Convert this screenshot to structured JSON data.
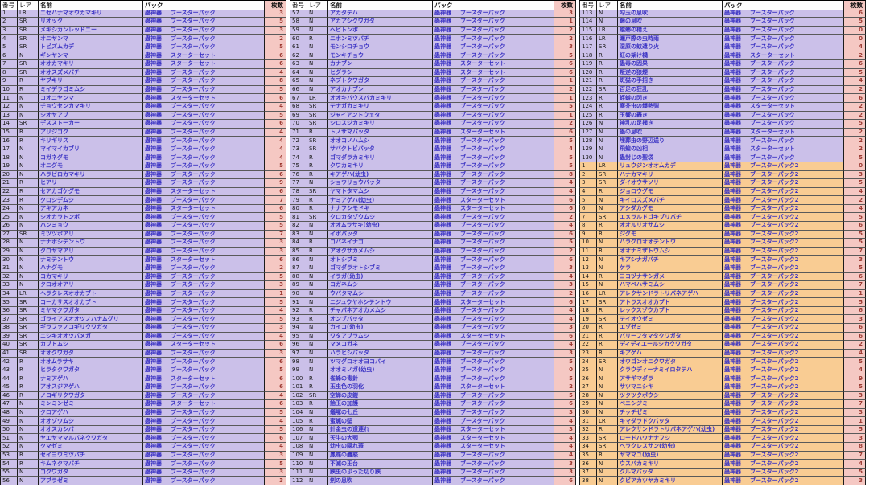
{
  "columns": [
    "番号",
    "レア",
    "名前",
    "パック",
    "枚数"
  ],
  "brand": "蟲神器",
  "packs": {
    "B": "ブースターパック",
    "S": "スターターセット",
    "B2": "ブースターパック2"
  },
  "colors": {
    "row_purple": "#cbc0e9",
    "row_orange": "#f9cc93",
    "count_col_pink": "#f5c8c3",
    "header_bg": "#fdfdfd",
    "name_text": "#3c34c4",
    "count_text": "#9c3a32"
  },
  "sections": [
    {
      "rows": [
        [
          1,
          "LR",
          "ニセハナマオウカマキリ",
          "B",
          3
        ],
        [
          2,
          "SR",
          "リオック",
          "B",
          5
        ],
        [
          3,
          "SR",
          "メキシカンレッドニー",
          "B",
          3
        ],
        [
          4,
          "SR",
          "オニヤンマ",
          "B",
          2
        ],
        [
          5,
          "SR",
          "トビズムカデ",
          "B",
          5
        ],
        [
          6,
          "N",
          "ギンヤンマ",
          "S",
          6
        ],
        [
          7,
          "SR",
          "オオカマキリ",
          "S",
          6
        ],
        [
          8,
          "SR",
          "オオスズメバチ",
          "B",
          4
        ],
        [
          9,
          "R",
          "ヤブキリ",
          "B",
          8
        ],
        [
          10,
          "R",
          "ミイデラゴミムシ",
          "B",
          5
        ],
        [
          11,
          "N",
          "コオニヤンマ",
          "S",
          6
        ],
        [
          12,
          "N",
          "チョウセンカマキリ",
          "B",
          4
        ],
        [
          13,
          "N",
          "シオヤアブ",
          "B",
          5
        ],
        [
          14,
          "SR",
          "デスストーカー",
          "B",
          6
        ],
        [
          15,
          "R",
          "アリジゴク",
          "B",
          4
        ],
        [
          16,
          "R",
          "キリギリス",
          "B",
          4
        ],
        [
          17,
          "N",
          "マイマイカブリ",
          "B",
          4
        ],
        [
          18,
          "N",
          "コガネグモ",
          "B",
          4
        ],
        [
          19,
          "N",
          "オニグモ",
          "B",
          5
        ],
        [
          20,
          "N",
          "ハラビロカマキリ",
          "B",
          6
        ],
        [
          21,
          "R",
          "ヒアリ",
          "B",
          9
        ],
        [
          22,
          "R",
          "セアカゴケグモ",
          "S",
          6
        ],
        [
          23,
          "R",
          "クロシデムシ",
          "B",
          7
        ],
        [
          24,
          "N",
          "アキアカネ",
          "S",
          6
        ],
        [
          25,
          "N",
          "シオカラトンボ",
          "B",
          5
        ],
        [
          26,
          "N",
          "ハンミョウ",
          "B",
          5
        ],
        [
          27,
          "SR",
          "ミツツボアリ",
          "B",
          7
        ],
        [
          28,
          "N",
          "ナナホシテントウ",
          "B",
          3
        ],
        [
          29,
          "N",
          "クロヤマアリ",
          "B",
          3
        ],
        [
          30,
          "N",
          "ナミテントウ",
          "S",
          6
        ],
        [
          31,
          "N",
          "ハナグモ",
          "B",
          2
        ],
        [
          32,
          "N",
          "コカマキリ",
          "B",
          5
        ],
        [
          33,
          "N",
          "クロオオアリ",
          "B",
          3
        ],
        [
          34,
          "LR",
          "ヘラクレスオオカブト",
          "B",
          1
        ],
        [
          35,
          "SR",
          "コーカサスオオカブト",
          "B",
          5
        ],
        [
          36,
          "SR",
          "ミヤマクワガタ",
          "B",
          4
        ],
        [
          37,
          "SR",
          "ゴライアスオオツノハナムグリ",
          "B",
          5
        ],
        [
          38,
          "SR",
          "ギラファノコギリクワガタ",
          "B",
          3
        ],
        [
          39,
          "SR",
          "ニシキオオツバメガ",
          "B",
          4
        ],
        [
          40,
          "SR",
          "カブトムシ",
          "S",
          6
        ],
        [
          41,
          "SR",
          "オオクワガタ",
          "B",
          3
        ],
        [
          42,
          "R",
          "オオムラサキ",
          "B",
          6
        ],
        [
          43,
          "R",
          "ヒラタクワガタ",
          "B",
          5
        ],
        [
          44,
          "R",
          "ナミアゲハ",
          "S",
          6
        ],
        [
          45,
          "R",
          "アオスジアゲハ",
          "B",
          6
        ],
        [
          46,
          "R",
          "ノコギリクワガタ",
          "B",
          4
        ],
        [
          47,
          "N",
          "ミンミンゼミ",
          "S",
          6
        ],
        [
          48,
          "N",
          "クロアゲハ",
          "B",
          5
        ],
        [
          49,
          "N",
          "オオゾウムシ",
          "B",
          4
        ],
        [
          50,
          "N",
          "オオスカシバ",
          "B",
          5
        ],
        [
          51,
          "N",
          "ヤエヤママルバネクワガタ",
          "B",
          6
        ],
        [
          52,
          "N",
          "クマゼミ",
          "B",
          4
        ],
        [
          53,
          "R",
          "セイヨウミツバチ",
          "B",
          3
        ],
        [
          54,
          "R",
          "キムネクマバチ",
          "B",
          5
        ],
        [
          55,
          "N",
          "コクワガタ",
          "B",
          3
        ],
        [
          56,
          "N",
          "アブラゼミ",
          "B",
          3
        ]
      ]
    },
    {
      "rows": [
        [
          57,
          "N",
          "アカタテハ",
          "B",
          3
        ],
        [
          58,
          "N",
          "アカアシクワガタ",
          "B",
          1
        ],
        [
          59,
          "N",
          "ヘビトンボ",
          "B",
          2
        ],
        [
          60,
          "R",
          "ニホンミツバチ",
          "B",
          2
        ],
        [
          61,
          "N",
          "モンシロチョウ",
          "B",
          3
        ],
        [
          62,
          "N",
          "モンキチョウ",
          "B",
          5
        ],
        [
          63,
          "N",
          "カナブン",
          "S",
          6
        ],
        [
          64,
          "N",
          "ヒグラシ",
          "S",
          6
        ],
        [
          65,
          "N",
          "ネブトクワガタ",
          "B",
          1
        ],
        [
          66,
          "N",
          "アオカナブン",
          "B",
          2
        ],
        [
          67,
          "LR",
          "オオキバウスバカミキリ",
          "B",
          1
        ],
        [
          68,
          "SR",
          "テナガカミキリ",
          "B",
          5
        ],
        [
          69,
          "SR",
          "ジャイアントウェタ",
          "B",
          1
        ],
        [
          70,
          "SR",
          "シロスジカミキリ",
          "B",
          2
        ],
        [
          71,
          "R",
          "トノサマバッタ",
          "S",
          6
        ],
        [
          72,
          "SR",
          "オオコノハムシ",
          "B",
          5
        ],
        [
          73,
          "SR",
          "サバクトビバッタ",
          "B",
          4
        ],
        [
          74,
          "R",
          "ゴマダラカミキリ",
          "B",
          5
        ],
        [
          75,
          "R",
          "クワカミキリ",
          "B",
          5
        ],
        [
          76,
          "R",
          "キアゲハ(幼虫)",
          "B",
          8
        ],
        [
          77,
          "N",
          "ショウリョウバッタ",
          "B",
          4
        ],
        [
          78,
          "SR",
          "ヤマトタマムシ",
          "B",
          4
        ],
        [
          79,
          "R",
          "ナミアゲハ(幼虫)",
          "S",
          6
        ],
        [
          80,
          "R",
          "ナナフシモドキ",
          "S",
          6
        ],
        [
          81,
          "SR",
          "クロカタゾウムシ",
          "B",
          2
        ],
        [
          82,
          "N",
          "オオムラサキ(幼虫)",
          "B",
          4
        ],
        [
          83,
          "N",
          "イボバッタ",
          "B",
          6
        ],
        [
          84,
          "R",
          "コバネイナゴ",
          "B",
          5
        ],
        [
          85,
          "R",
          "アオクサカメムシ",
          "B",
          2
        ],
        [
          86,
          "N",
          "オトシブミ",
          "B",
          6
        ],
        [
          87,
          "N",
          "ゴマダラオトシブミ",
          "B",
          3
        ],
        [
          88,
          "N",
          "イラガ(幼虫)",
          "B",
          4
        ],
        [
          89,
          "N",
          "コガネムシ",
          "B",
          3
        ],
        [
          90,
          "N",
          "ウバタマムシ",
          "B",
          2
        ],
        [
          91,
          "N",
          "ニジュウヤホシテントウ",
          "S",
          6
        ],
        [
          92,
          "R",
          "チャバネアオカメムシ",
          "B",
          4
        ],
        [
          93,
          "R",
          "オンブバッタ",
          "B",
          4
        ],
        [
          94,
          "N",
          "カイコ(幼虫)",
          "B",
          3
        ],
        [
          95,
          "N",
          "ワタアブラムシ",
          "S",
          6
        ],
        [
          96,
          "N",
          "マメコガネ",
          "B",
          4
        ],
        [
          97,
          "N",
          "ハラヒシバッタ",
          "B",
          3
        ],
        [
          98,
          "N",
          "ツマグロオオヨコバイ",
          "B",
          5
        ],
        [
          99,
          "N",
          "オオミノガ(幼虫)",
          "B",
          0
        ],
        [
          100,
          "R",
          "雀蜂の毒針",
          "B",
          5
        ],
        [
          101,
          "R",
          "玉虫色の羽化",
          "S",
          2
        ],
        [
          102,
          "SR",
          "空蝉の皮鎧",
          "B",
          5
        ],
        [
          103,
          "R",
          "飴玉の加護",
          "B",
          6
        ],
        [
          104,
          "N",
          "蟻塚の七丘",
          "B",
          3
        ],
        [
          105,
          "R",
          "蜜蝋の壁",
          "B",
          4
        ],
        [
          106,
          "N",
          "針金虫の道連れ",
          "S",
          3
        ],
        [
          107,
          "N",
          "天牛の大顎",
          "S",
          4
        ],
        [
          108,
          "N",
          "幼虫の隠れ蓑",
          "S",
          4
        ],
        [
          109,
          "N",
          "鳳蝶の蠱惑",
          "B",
          4
        ],
        [
          110,
          "N",
          "不滅の王台",
          "B",
          3
        ],
        [
          111,
          "N",
          "鋏虫のぶった切り鋏",
          "B",
          3
        ],
        [
          112,
          "N",
          "剣の息吹",
          "B",
          6
        ]
      ]
    },
    {
      "rows": [
        [
          113,
          "N",
          "勾玉の息吹",
          "B",
          6
        ],
        [
          114,
          "N",
          "鏡の息吹",
          "B",
          5
        ],
        [
          115,
          "LR",
          "蟷螂の構え",
          "B",
          0
        ],
        [
          116,
          "LR",
          "瀬戸際の虫時雨",
          "B",
          0
        ],
        [
          117,
          "SR",
          "湿原の蚊遣り火",
          "B",
          4
        ],
        [
          118,
          "R",
          "紅の架け橋",
          "S",
          2
        ],
        [
          119,
          "R",
          "蟲毒の因果",
          "B",
          6
        ],
        [
          120,
          "R",
          "叛逆の狼煙",
          "B",
          5
        ],
        [
          121,
          "R",
          "斑猫の手招き",
          "B",
          4
        ],
        [
          122,
          "SR",
          "百足の狂乱",
          "B",
          2
        ],
        [
          123,
          "R",
          "蜉蝣の閃き",
          "B",
          6
        ],
        [
          124,
          "R",
          "塵芥虫の爆熱弾",
          "S",
          2
        ],
        [
          125,
          "R",
          "玉響の轟き",
          "B",
          2
        ],
        [
          126,
          "N",
          "神乱の足掻き",
          "B",
          5
        ],
        [
          127,
          "N",
          "蟲の息吹",
          "S",
          2
        ],
        [
          128,
          "N",
          "埋葬虫の野辺送り",
          "B",
          2
        ],
        [
          129,
          "N",
          "飛蝗の凶相",
          "S",
          2
        ],
        [
          130,
          "N",
          "蟲封じの聖袋",
          "B",
          5
        ],
        [
          1,
          "LR",
          "リュウジンオオムカデ",
          "B2",
          0
        ],
        [
          2,
          "SR",
          "ハナカマキリ",
          "B2",
          3
        ],
        [
          3,
          "SR",
          "ダイオウサソリ",
          "B2",
          5
        ],
        [
          4,
          "R",
          "ジョロウグモ",
          "B2",
          4
        ],
        [
          5,
          "N",
          "キイロスズメバチ",
          "B2",
          2
        ],
        [
          6,
          "N",
          "アシダカグモ",
          "B2",
          4
        ],
        [
          7,
          "SR",
          "エメラルドゴキブリバチ",
          "B2",
          5
        ],
        [
          8,
          "R",
          "オオルリオサムシ",
          "B2",
          6
        ],
        [
          9,
          "R",
          "ジグモ",
          "B2",
          5
        ],
        [
          10,
          "N",
          "ハラグロオオテントウ",
          "B2",
          5
        ],
        [
          11,
          "R",
          "オオナミザトウムシ",
          "B2",
          7
        ],
        [
          12,
          "N",
          "キアシナガバチ",
          "B2",
          3
        ],
        [
          13,
          "N",
          "ケラ",
          "B2",
          5
        ],
        [
          14,
          "R",
          "ヨコヅナサシガメ",
          "B2",
          6
        ],
        [
          15,
          "N",
          "ハマベハサミムシ",
          "B2",
          7
        ],
        [
          16,
          "LR",
          "アレクサンドラトリバネアゲハ",
          "B2",
          1
        ],
        [
          17,
          "SR",
          "アトラスオオカブト",
          "B2",
          5
        ],
        [
          18,
          "R",
          "レックスゾウカブト",
          "B2",
          6
        ],
        [
          19,
          "SR",
          "テイオウゼミ",
          "B2",
          3
        ],
        [
          20,
          "R",
          "エゾゼミ",
          "B2",
          6
        ],
        [
          21,
          "R",
          "バリーフタマタクワガタ",
          "B2",
          6
        ],
        [
          22,
          "R",
          "ディディエールシカクワガタ",
          "B2",
          2
        ],
        [
          23,
          "R",
          "キアゲハ",
          "B2",
          4
        ],
        [
          24,
          "SR",
          "オウゴンオニクワガタ",
          "B2",
          5
        ],
        [
          25,
          "N",
          "クラウディーナミイロタテハ",
          "B2",
          4
        ],
        [
          26,
          "N",
          "アサギマダラ",
          "B2",
          9
        ],
        [
          27,
          "N",
          "サツマニシキ",
          "B2",
          5
        ],
        [
          28,
          "N",
          "ツクツクボウシ",
          "B2",
          3
        ],
        [
          29,
          "N",
          "ベニシジミ",
          "B2",
          7
        ],
        [
          30,
          "N",
          "チッチゼミ",
          "B2",
          3
        ],
        [
          31,
          "LR",
          "キマダラドクバッタ",
          "B2",
          1
        ],
        [
          32,
          "R",
          "アレクサンドラトリバネアゲハ(幼虫)",
          "B2",
          5
        ],
        [
          33,
          "SR",
          "ロードハウナナフシ",
          "B2",
          3
        ],
        [
          34,
          "SR",
          "ヘラクレスサン(幼虫)",
          "B2",
          8
        ],
        [
          35,
          "R",
          "ヤママユ(幼虫)",
          "B2",
          7
        ],
        [
          36,
          "N",
          "ウスバカミキリ",
          "B2",
          4
        ],
        [
          37,
          "N",
          "クルマバッタ",
          "B2",
          5
        ],
        [
          38,
          "N",
          "クビアカツヤカミキリ",
          "B2",
          3
        ]
      ]
    }
  ]
}
